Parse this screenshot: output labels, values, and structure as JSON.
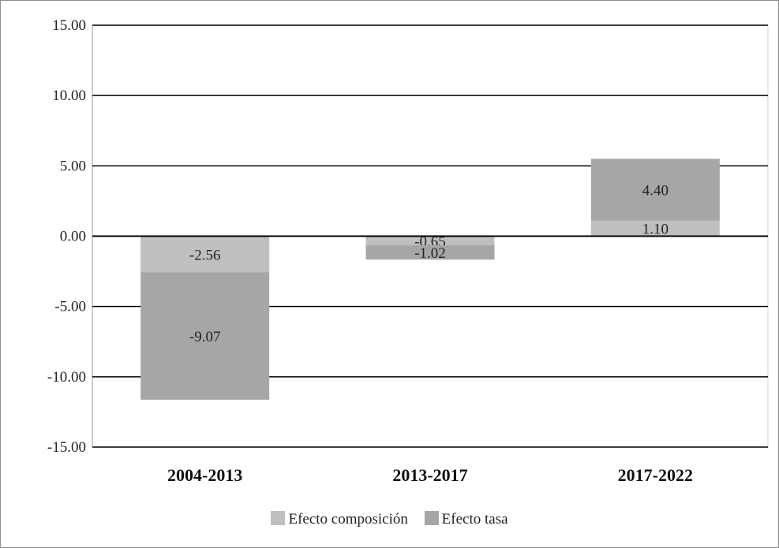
{
  "chart_data": {
    "type": "bar",
    "stacked": true,
    "categories": [
      "2004-2013",
      "2013-2017",
      "2017-2022"
    ],
    "series": [
      {
        "name": "Efecto composición",
        "values": [
          -2.56,
          -0.65,
          1.1
        ],
        "labels": [
          "-2.56",
          "-0.65",
          "1.10"
        ],
        "color": "#bfbfbf"
      },
      {
        "name": "Efecto tasa",
        "values": [
          -9.07,
          -1.02,
          4.4
        ],
        "labels": [
          "-9.07",
          "-1.02",
          "4.40"
        ],
        "color": "#a6a6a6"
      }
    ],
    "ylim": [
      -15,
      15
    ],
    "yticks": [
      15,
      10,
      5,
      0,
      -5,
      -10,
      -15
    ],
    "ytick_labels": [
      "15.00",
      "10.00",
      "5.00",
      "0.00",
      "-5.00",
      "-10.00",
      "-15.00"
    ],
    "grid": true,
    "legend_position": "bottom",
    "title": "",
    "xlabel": "",
    "ylabel": ""
  }
}
